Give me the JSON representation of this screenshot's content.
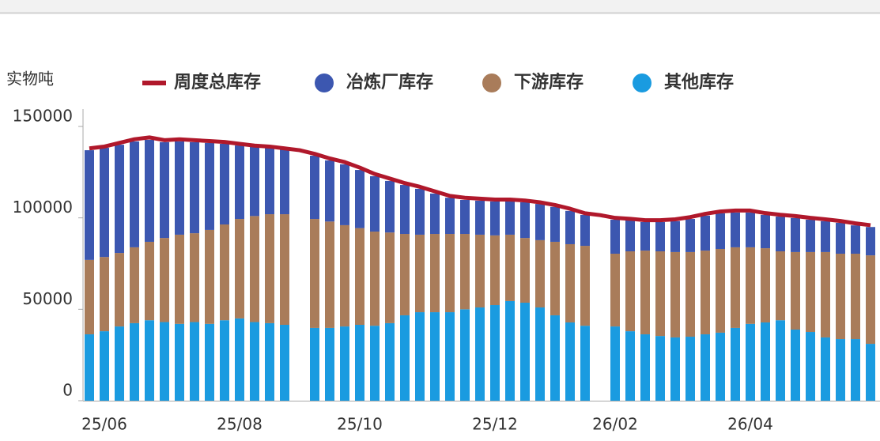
{
  "chart_data": {
    "type": "bar",
    "y_label": "实物吨",
    "categories": [
      null,
      "25/06",
      null,
      null,
      null,
      null,
      null,
      null,
      null,
      null,
      "25/08",
      null,
      null,
      null,
      null,
      null,
      null,
      null,
      "25/10",
      null,
      null,
      null,
      null,
      null,
      null,
      null,
      null,
      "25/12",
      null,
      null,
      null,
      null,
      null,
      null,
      null,
      "26/02",
      null,
      null,
      null,
      null,
      null,
      null,
      null,
      null,
      "26/04",
      null,
      null,
      null,
      null,
      null,
      null,
      null,
      null
    ],
    "series": [
      {
        "name": "周度总库存",
        "type": "line",
        "color": "#b0182b",
        "values": [
          138000,
          139000,
          141000,
          143000,
          144000,
          142500,
          143000,
          142500,
          142000,
          141500,
          140500,
          139500,
          139000,
          138000,
          137000,
          135000,
          132500,
          130500,
          127500,
          124000,
          121500,
          119000,
          117000,
          114500,
          112000,
          111000,
          110500,
          110000,
          110000,
          109500,
          108500,
          107000,
          105000,
          102500,
          101500,
          100000,
          99500,
          98700,
          98700,
          99200,
          100400,
          102200,
          103500,
          104000,
          104000,
          102600,
          101700,
          101000,
          100000,
          99200,
          98300,
          97000,
          96000
        ]
      },
      {
        "name": "冶炼厂库存",
        "type": "bar",
        "color": "#3c57b0",
        "values": [
          60000,
          59700,
          59200,
          57900,
          55800,
          52400,
          51000,
          49800,
          47600,
          44100,
          40200,
          37800,
          36300,
          35500,
          null,
          34600,
          33400,
          33300,
          31800,
          30300,
          28200,
          26800,
          25100,
          22100,
          19800,
          18600,
          18600,
          18600,
          18200,
          19500,
          19800,
          19100,
          18200,
          16900,
          null,
          18600,
          16900,
          15600,
          16000,
          16900,
          18100,
          19100,
          19500,
          19000,
          19000,
          18200,
          19000,
          18600,
          17700,
          16900,
          16900,
          15500,
          15500
        ]
      },
      {
        "name": "下游库存",
        "type": "bar",
        "color": "#a97c5a",
        "values": [
          40700,
          40600,
          40200,
          41500,
          42900,
          46000,
          48800,
          48600,
          51400,
          52400,
          54400,
          58000,
          59600,
          60500,
          null,
          59600,
          58200,
          55400,
          52900,
          51500,
          49600,
          44500,
          42400,
          42800,
          42800,
          41200,
          39800,
          38100,
          36300,
          35400,
          36800,
          40200,
          42800,
          43700,
          null,
          39800,
          43700,
          45800,
          46300,
          46700,
          46300,
          45800,
          45800,
          44100,
          41900,
          40600,
          37700,
          42400,
          43700,
          46700,
          46700,
          46700,
          48400
        ]
      },
      {
        "name": "其他库存",
        "type": "bar",
        "color": "#1a9be0",
        "values": [
          36300,
          38000,
          40600,
          42400,
          44000,
          43000,
          42000,
          43000,
          42000,
          44000,
          45000,
          43000,
          42400,
          41500,
          null,
          39800,
          39800,
          40600,
          41500,
          41000,
          42400,
          46700,
          48400,
          48400,
          48400,
          50000,
          51000,
          52300,
          54500,
          53600,
          51000,
          46700,
          42800,
          41000,
          null,
          40600,
          38000,
          36300,
          35400,
          34600,
          35000,
          36300,
          37200,
          39800,
          42000,
          42800,
          44000,
          38900,
          37600,
          34600,
          33700,
          33700,
          31100
        ]
      }
    ],
    "ylim": [
      0,
      150000
    ],
    "yticks": [
      0,
      50000,
      100000,
      150000
    ]
  }
}
